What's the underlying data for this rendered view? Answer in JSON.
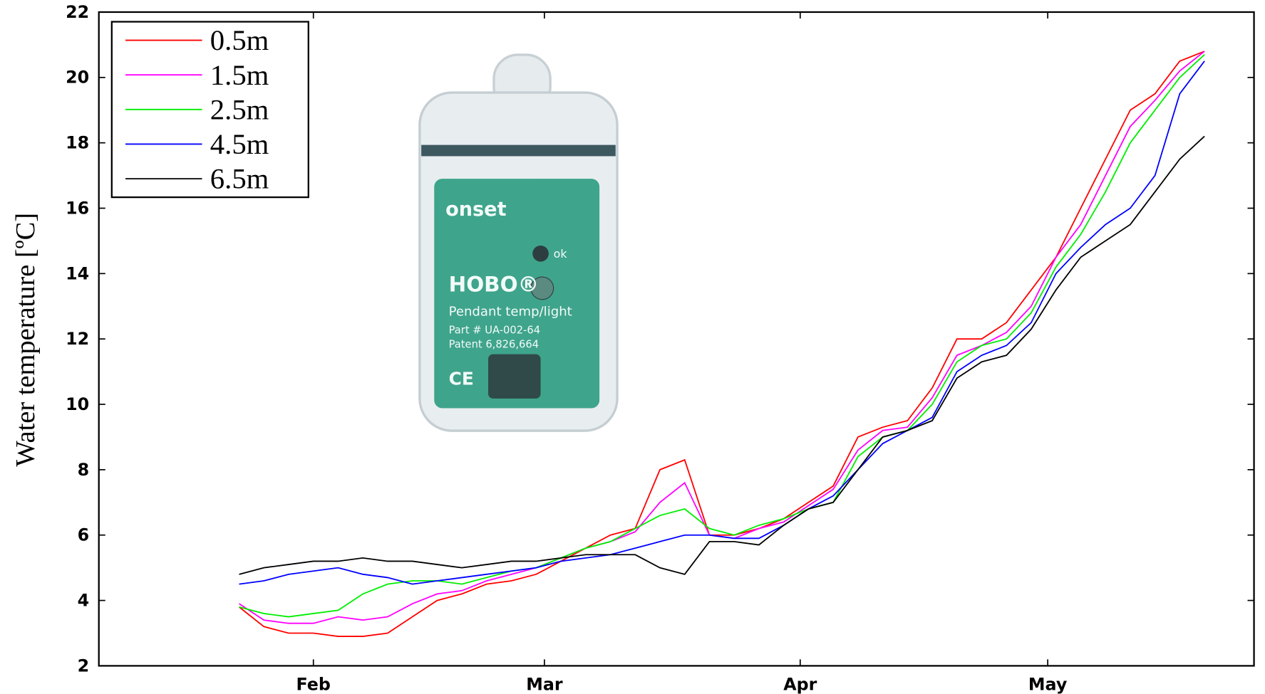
{
  "chart_data": {
    "type": "line",
    "y_label": "Water temperature [ºC]",
    "x": [
      23,
      26,
      29,
      32,
      35,
      38,
      41,
      44,
      47,
      50,
      53,
      56,
      59,
      62,
      65,
      68,
      71,
      74,
      77,
      80,
      83,
      86,
      89,
      92,
      95,
      98,
      101,
      104,
      107,
      110,
      113,
      116,
      119,
      122,
      125,
      128,
      131,
      134,
      137,
      140
    ],
    "xlim": [
      6,
      146
    ],
    "xticks": [
      {
        "value": 32,
        "label": "Feb"
      },
      {
        "value": 60,
        "label": "Mar"
      },
      {
        "value": 91,
        "label": "Apr"
      },
      {
        "value": 121,
        "label": "May"
      }
    ],
    "ylim": [
      2,
      22
    ],
    "yticks": [
      2,
      4,
      6,
      8,
      10,
      12,
      14,
      16,
      18,
      20,
      22
    ],
    "legend": "upper-left",
    "series": [
      {
        "name": "0.5m",
        "color": "#ff0000",
        "values": [
          3.8,
          3.2,
          3.0,
          3.0,
          2.9,
          2.9,
          3.0,
          3.5,
          4.0,
          4.2,
          4.5,
          4.6,
          4.8,
          5.2,
          5.6,
          6.0,
          6.2,
          8.0,
          8.3,
          6.0,
          6.0,
          6.2,
          6.5,
          7.0,
          7.5,
          9.0,
          9.3,
          9.5,
          10.5,
          12.0,
          12.0,
          12.5,
          13.5,
          14.5,
          16.0,
          17.5,
          19.0,
          19.5,
          20.5,
          20.8
        ]
      },
      {
        "name": "1.5m",
        "color": "#ff00ff",
        "values": [
          3.9,
          3.4,
          3.3,
          3.3,
          3.5,
          3.4,
          3.5,
          3.9,
          4.2,
          4.3,
          4.6,
          4.8,
          5.0,
          5.3,
          5.6,
          5.8,
          6.1,
          7.0,
          7.6,
          6.0,
          5.9,
          6.2,
          6.4,
          6.9,
          7.4,
          8.6,
          9.2,
          9.3,
          10.2,
          11.5,
          11.8,
          12.2,
          13.0,
          14.5,
          15.5,
          17.0,
          18.5,
          19.3,
          20.2,
          20.8
        ]
      },
      {
        "name": "2.5m",
        "color": "#00ee00",
        "values": [
          3.8,
          3.6,
          3.5,
          3.6,
          3.7,
          4.2,
          4.5,
          4.6,
          4.6,
          4.5,
          4.7,
          4.9,
          5.0,
          5.3,
          5.6,
          5.8,
          6.2,
          6.6,
          6.8,
          6.2,
          6.0,
          6.3,
          6.5,
          6.8,
          7.0,
          8.4,
          9.0,
          9.2,
          10.0,
          11.3,
          11.8,
          12.0,
          12.8,
          14.2,
          15.2,
          16.5,
          18.0,
          19.0,
          20.0,
          20.7
        ]
      },
      {
        "name": "4.5m",
        "color": "#0000ff",
        "values": [
          4.5,
          4.6,
          4.8,
          4.9,
          5.0,
          4.8,
          4.7,
          4.5,
          4.6,
          4.7,
          4.8,
          4.9,
          5.0,
          5.2,
          5.3,
          5.4,
          5.6,
          5.8,
          6.0,
          6.0,
          5.9,
          5.9,
          6.3,
          6.8,
          7.2,
          8.0,
          8.8,
          9.2,
          9.6,
          11.0,
          11.5,
          11.8,
          12.5,
          14.0,
          14.8,
          15.5,
          16.0,
          17.0,
          19.5,
          20.5
        ]
      },
      {
        "name": "6.5m",
        "color": "#000000",
        "values": [
          4.8,
          5.0,
          5.1,
          5.2,
          5.2,
          5.3,
          5.2,
          5.2,
          5.1,
          5.0,
          5.1,
          5.2,
          5.2,
          5.3,
          5.4,
          5.4,
          5.4,
          5.0,
          4.8,
          5.8,
          5.8,
          5.7,
          6.3,
          6.8,
          7.0,
          8.0,
          9.0,
          9.2,
          9.5,
          10.8,
          11.3,
          11.5,
          12.3,
          13.5,
          14.5,
          15.0,
          15.5,
          16.5,
          17.5,
          18.2
        ]
      }
    ],
    "photo_text": [
      "onset",
      "ok",
      "HOBO®",
      "Pendant temp/light",
      "Part # UA-002-64",
      "Patent 6,826,664",
      "CE"
    ]
  }
}
